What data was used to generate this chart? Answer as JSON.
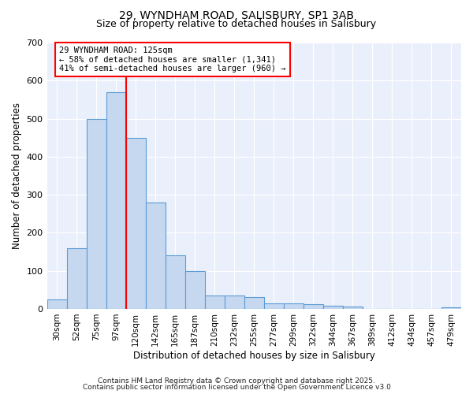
{
  "title_line1": "29, WYNDHAM ROAD, SALISBURY, SP1 3AB",
  "title_line2": "Size of property relative to detached houses in Salisbury",
  "xlabel": "Distribution of detached houses by size in Salisbury",
  "ylabel": "Number of detached properties",
  "categories": [
    "30sqm",
    "52sqm",
    "75sqm",
    "97sqm",
    "120sqm",
    "142sqm",
    "165sqm",
    "187sqm",
    "210sqm",
    "232sqm",
    "255sqm",
    "277sqm",
    "299sqm",
    "322sqm",
    "344sqm",
    "367sqm",
    "389sqm",
    "412sqm",
    "434sqm",
    "457sqm",
    "479sqm"
  ],
  "values": [
    25,
    160,
    500,
    570,
    450,
    280,
    140,
    100,
    35,
    35,
    30,
    15,
    15,
    12,
    8,
    6,
    0,
    0,
    0,
    0,
    5
  ],
  "bar_color": "#c5d8f0",
  "bar_edge_color": "#5b9bd5",
  "vline_x": 3.5,
  "vline_color": "red",
  "annotation_line1": "29 WYNDHAM ROAD: 125sqm",
  "annotation_line2": "← 58% of detached houses are smaller (1,341)",
  "annotation_line3": "41% of semi-detached houses are larger (960) →",
  "annotation_box_color": "white",
  "annotation_box_edge": "red",
  "ylim": [
    0,
    700
  ],
  "yticks": [
    0,
    100,
    200,
    300,
    400,
    500,
    600,
    700
  ],
  "bg_color": "#eaf0fb",
  "grid_color": "white",
  "footer_line1": "Contains HM Land Registry data © Crown copyright and database right 2025.",
  "footer_line2": "Contains public sector information licensed under the Open Government Licence v3.0"
}
